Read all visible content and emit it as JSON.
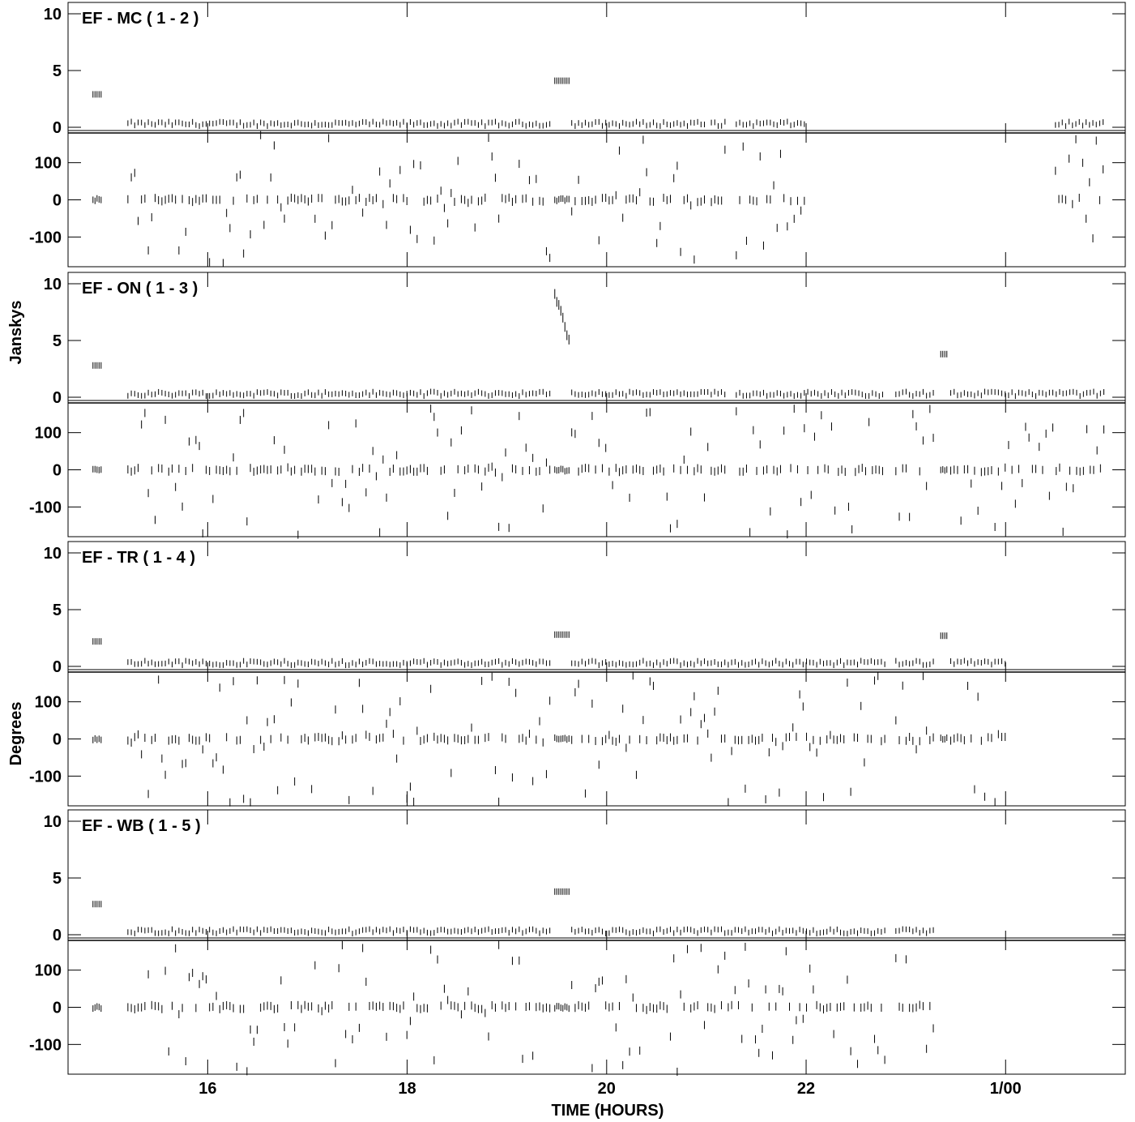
{
  "y_axis_labels": {
    "amplitude": "Janskys",
    "phase": "Degrees"
  },
  "x_axis_label": "TIME (HOURS)",
  "chart_data": {
    "type": "scatter",
    "xlabel": "TIME (HOURS)",
    "x_ticks": [
      "16",
      "18",
      "20",
      "22",
      "1/00"
    ],
    "x_tick_hours": [
      16,
      18,
      20,
      22,
      24
    ],
    "xlim": [
      14.6,
      25.2
    ],
    "amp_ylim": [
      -0.5,
      11
    ],
    "phase_ylim": [
      -180,
      180
    ],
    "amp_ticks": [
      "10",
      "5",
      "0"
    ],
    "amp_tick_values": [
      10,
      5,
      0
    ],
    "phase_ticks": [
      "100",
      "0",
      "-100"
    ],
    "phase_tick_values": [
      100,
      0,
      -100
    ],
    "panels": [
      {
        "title": "EF - MC ( 1 - 2 )",
        "baseline_amp": 0.3,
        "segments": [
          [
            15.2,
            19.45
          ],
          [
            19.65,
            21.0
          ],
          [
            21.05,
            21.2
          ],
          [
            21.3,
            22.0
          ],
          [
            24.5,
            25.0
          ]
        ],
        "cal_scans": [
          {
            "start": 14.85,
            "end": 14.95,
            "amp": 2.9
          },
          {
            "start": 19.48,
            "end": 19.63,
            "amp": 4.1
          }
        ],
        "phase_gaps": []
      },
      {
        "title": "EF - ON ( 1 - 3 )",
        "baseline_amp": 0.3,
        "segments": [
          [
            15.2,
            19.45
          ],
          [
            19.65,
            21.2
          ],
          [
            21.3,
            22.8
          ],
          [
            22.9,
            23.3
          ],
          [
            23.45,
            25.0
          ]
        ],
        "cal_scans": [
          {
            "start": 14.85,
            "end": 14.95,
            "amp": 2.8
          },
          {
            "start": 23.35,
            "end": 23.42,
            "amp": 3.8
          }
        ],
        "spike": {
          "start": 19.48,
          "end": 19.63,
          "amp": 9.0
        },
        "phase_gaps": []
      },
      {
        "title": "EF - TR ( 1 - 4 )",
        "baseline_amp": 0.3,
        "segments": [
          [
            15.2,
            19.45
          ],
          [
            19.65,
            22.8
          ],
          [
            22.9,
            23.3
          ],
          [
            23.45,
            24.0
          ]
        ],
        "cal_scans": [
          {
            "start": 14.85,
            "end": 14.95,
            "amp": 2.2
          },
          {
            "start": 19.48,
            "end": 19.63,
            "amp": 2.8
          },
          {
            "start": 23.35,
            "end": 23.42,
            "amp": 2.7
          }
        ],
        "phase_gaps": []
      },
      {
        "title": "EF - WB ( 1 - 5 )",
        "baseline_amp": 0.3,
        "segments": [
          [
            15.2,
            19.45
          ],
          [
            19.65,
            22.8
          ],
          [
            22.9,
            23.3
          ]
        ],
        "cal_scans": [
          {
            "start": 14.85,
            "end": 14.95,
            "amp": 2.7
          },
          {
            "start": 19.48,
            "end": 19.63,
            "amp": 3.8
          }
        ],
        "phase_gaps": []
      }
    ]
  }
}
